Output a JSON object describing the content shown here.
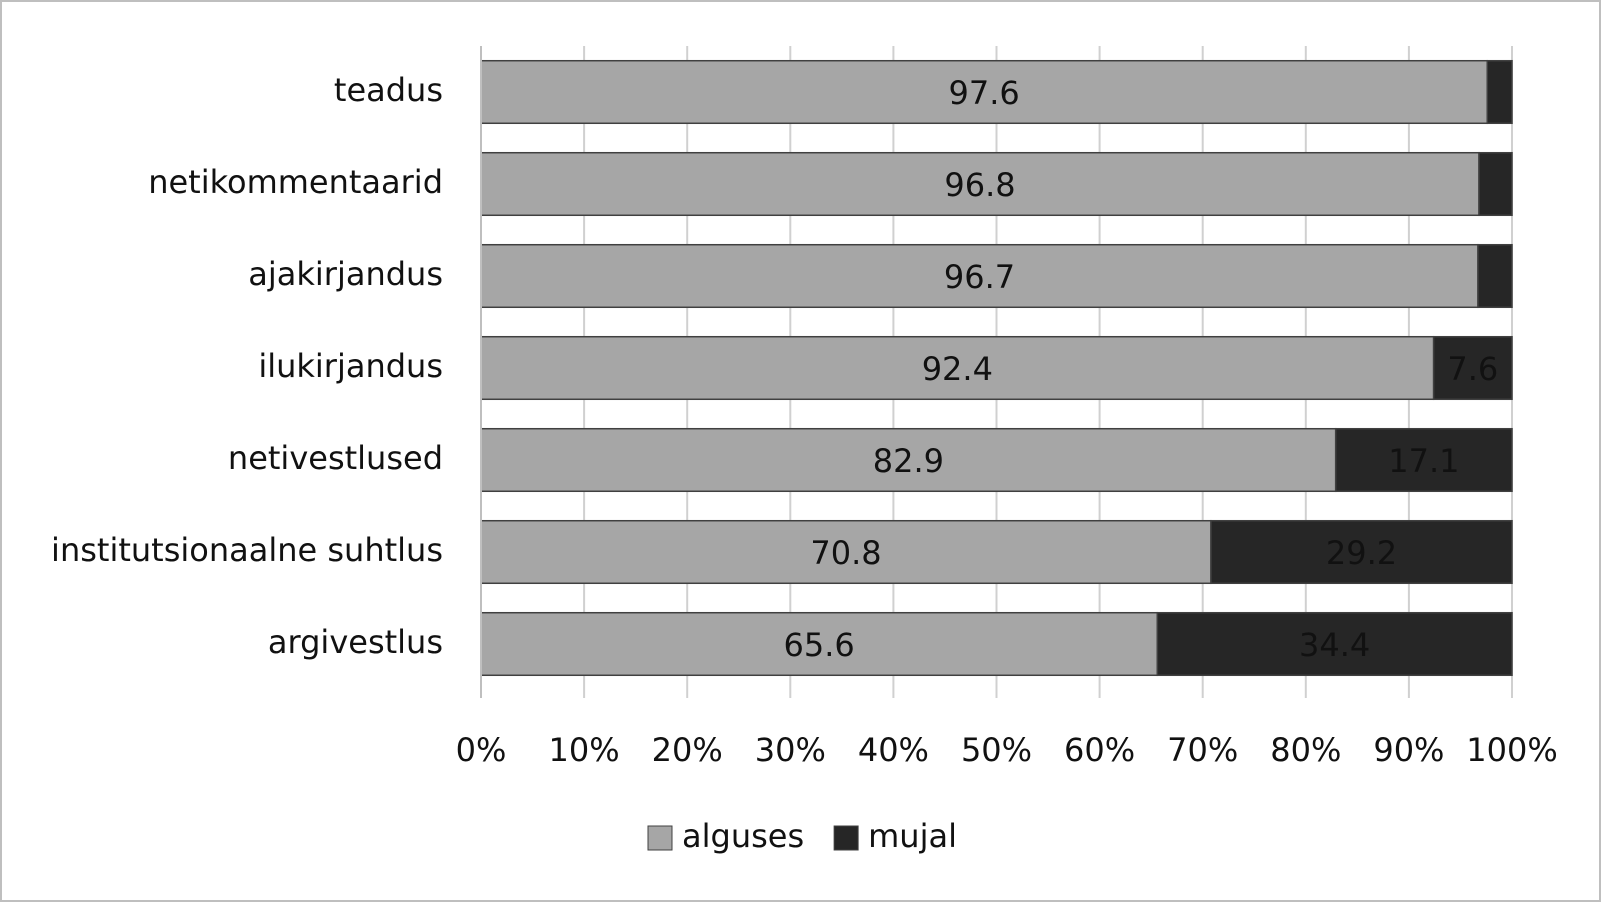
{
  "chart_data": {
    "type": "stacked-bar-horizontal",
    "categories": [
      "teadus",
      "netikommentaarid",
      "ajakirjandus",
      "ilukirjandus",
      "netivestlused",
      "institutsionaalne suhtlus",
      "argivestlus"
    ],
    "series": [
      {
        "name": "alguses",
        "color": "#a6a6a6",
        "label_color": "#111111",
        "values": [
          97.6,
          96.8,
          96.7,
          92.4,
          82.9,
          70.8,
          65.6
        ]
      },
      {
        "name": "mujal",
        "color": "#262626",
        "label_color": "#ffffff",
        "values": [
          2.4,
          3.2,
          3.3,
          7.6,
          17.1,
          29.2,
          34.4
        ]
      }
    ],
    "xlim": [
      0,
      100
    ],
    "xticks": [
      {
        "value": 0,
        "label": "0%"
      },
      {
        "value": 10,
        "label": "10%"
      },
      {
        "value": 20,
        "label": "20%"
      },
      {
        "value": 30,
        "label": "30%"
      },
      {
        "value": 40,
        "label": "40%"
      },
      {
        "value": 50,
        "label": "50%"
      },
      {
        "value": 60,
        "label": "60%"
      },
      {
        "value": 70,
        "label": "70%"
      },
      {
        "value": 80,
        "label": "80%"
      },
      {
        "value": 90,
        "label": "90%"
      },
      {
        "value": 100,
        "label": "100%"
      }
    ],
    "grid": true,
    "legend": "bottom"
  }
}
